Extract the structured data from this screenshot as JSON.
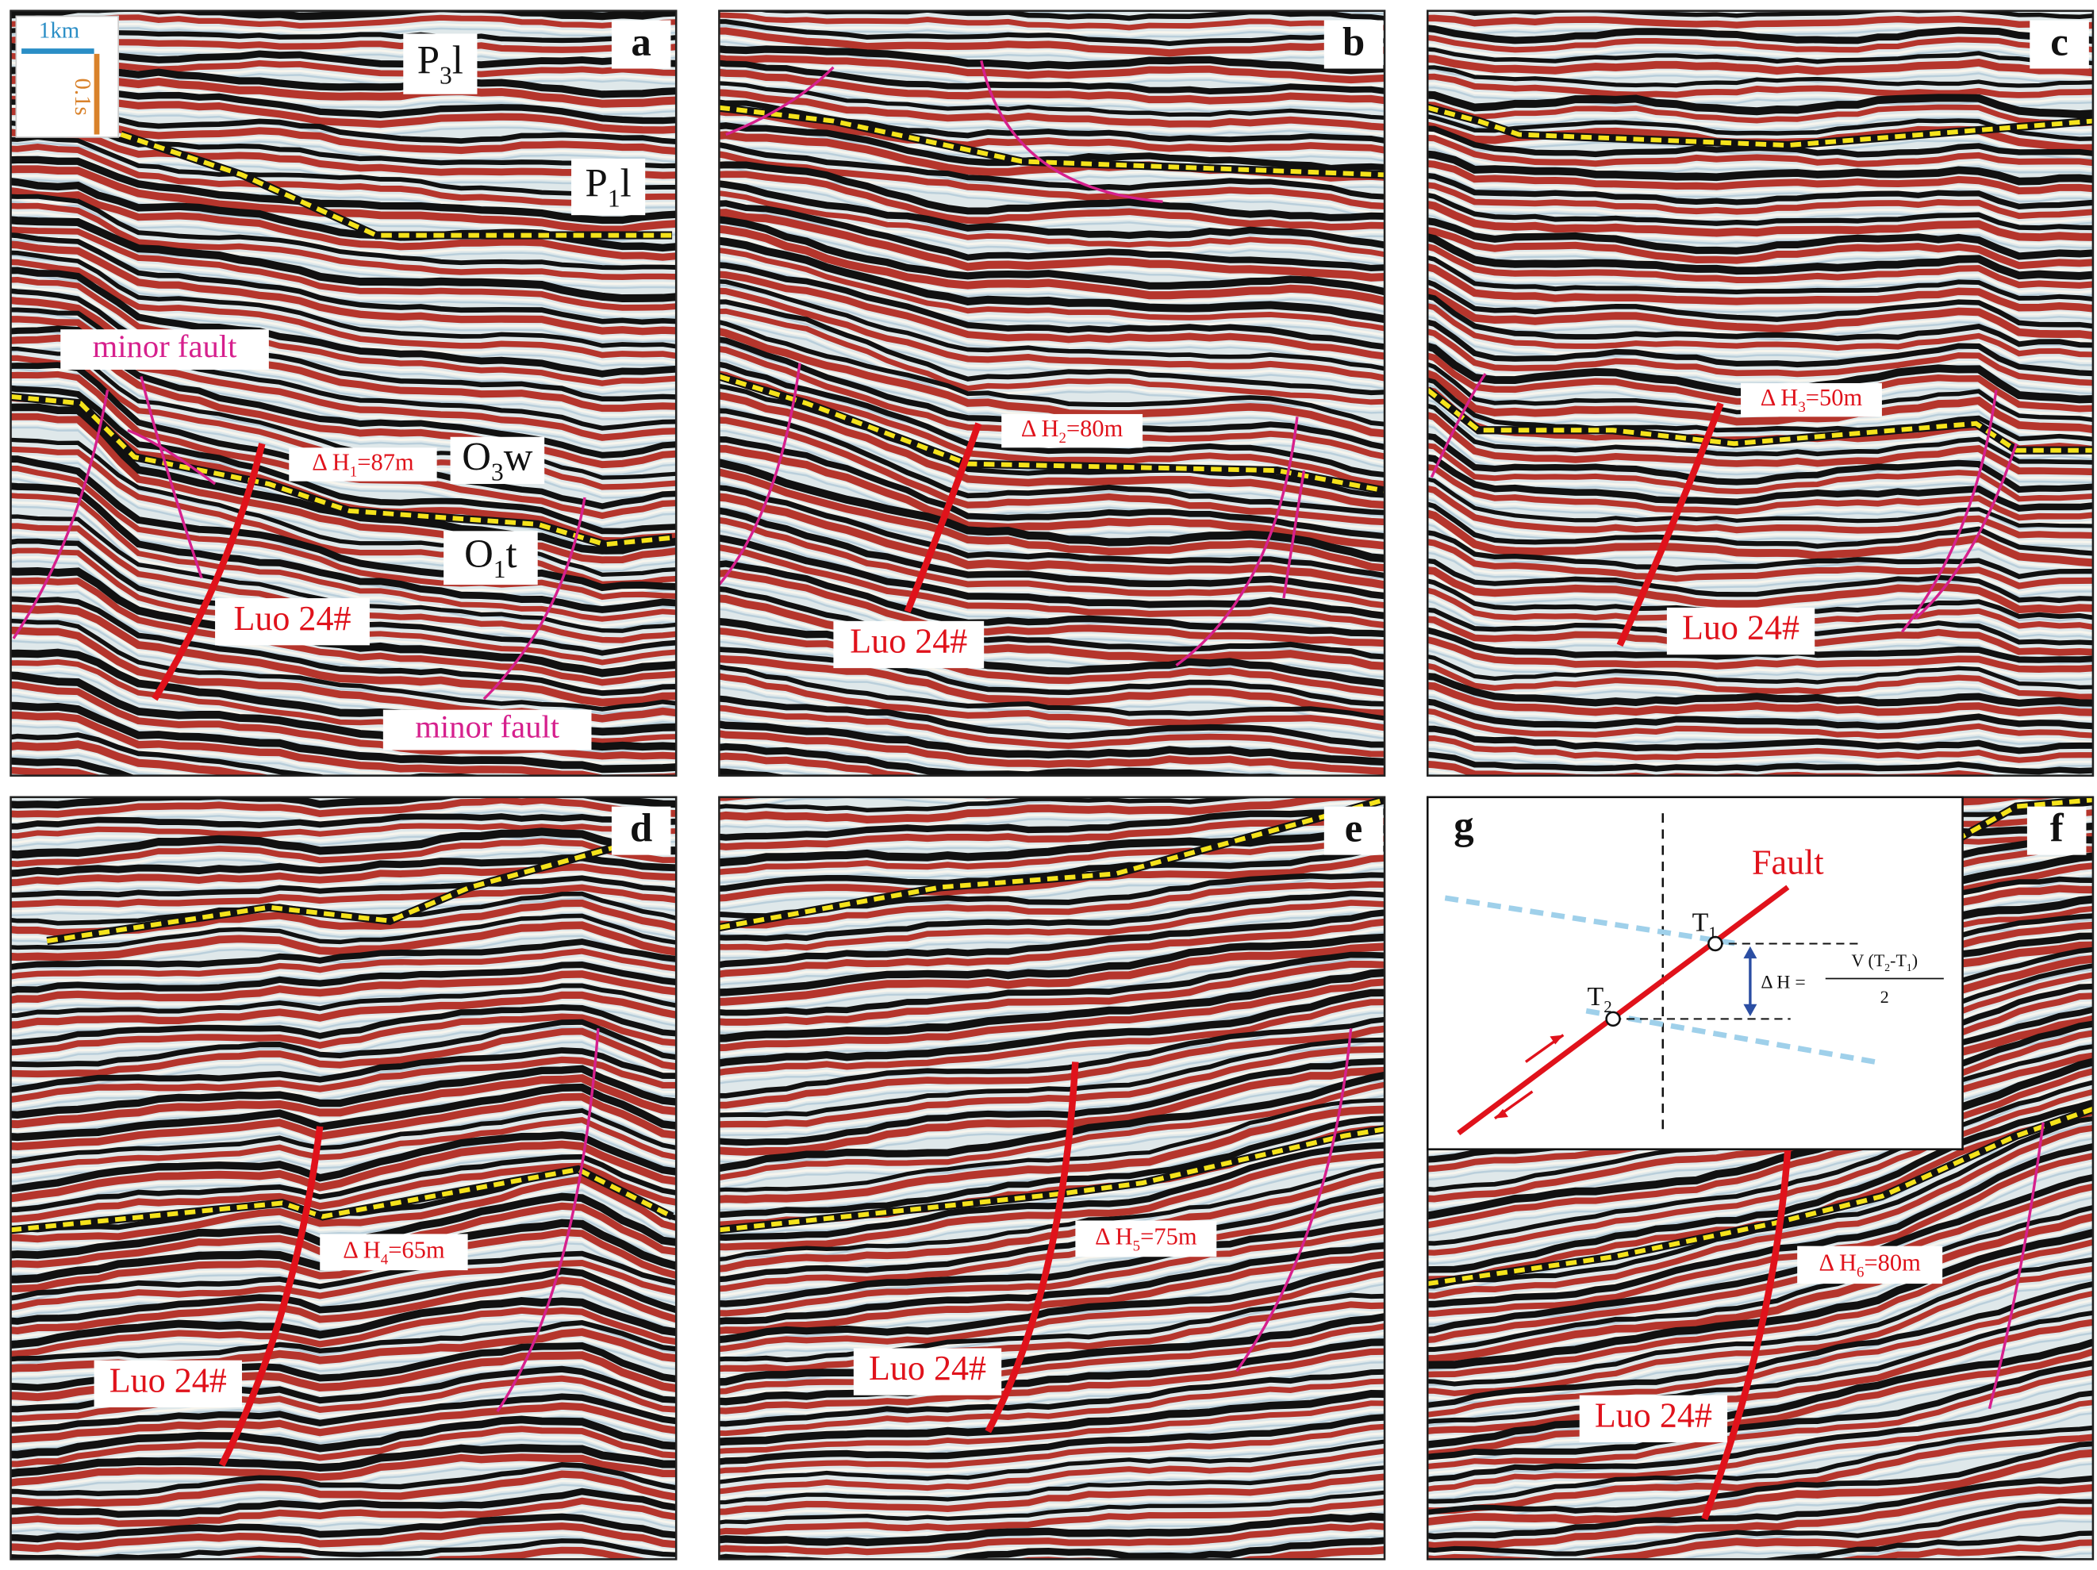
{
  "scale_bar": {
    "horizontal": "1km",
    "vertical": "0.1s"
  },
  "panels": [
    {
      "letter": "a",
      "formations": [
        {
          "base": "P",
          "sub": "3",
          "rest": "l"
        },
        {
          "base": "P",
          "sub": "1",
          "rest": "l"
        },
        {
          "base": "O",
          "sub": "3",
          "rest": "w"
        },
        {
          "base": "O",
          "sub": "1",
          "rest": "t"
        }
      ],
      "minor_fault_labels": [
        "minor fault",
        "minor fault"
      ],
      "throw": {
        "prefix": "Δ H",
        "sub": "1",
        "suffix": "=87m"
      },
      "fault_label": "Luo 24#"
    },
    {
      "letter": "b",
      "throw": {
        "prefix": "Δ H",
        "sub": "2",
        "suffix": "=80m"
      },
      "fault_label": "Luo 24#"
    },
    {
      "letter": "c",
      "throw": {
        "prefix": "Δ H",
        "sub": "3",
        "suffix": "=50m"
      },
      "fault_label": "Luo 24#"
    },
    {
      "letter": "d",
      "throw": {
        "prefix": "Δ H",
        "sub": "4",
        "suffix": "=65m"
      },
      "fault_label": "Luo 24#"
    },
    {
      "letter": "e",
      "throw": {
        "prefix": "Δ H",
        "sub": "5",
        "suffix": "=75m"
      },
      "fault_label": "Luo 24#"
    },
    {
      "letter": "f",
      "throw": {
        "prefix": "Δ H",
        "sub": "6",
        "suffix": "=80m"
      },
      "fault_label": "Luo 24#"
    }
  ],
  "schematic": {
    "letter": "g",
    "fault": "Fault",
    "t1": {
      "base": "T",
      "sub": "1"
    },
    "t2": {
      "base": "T",
      "sub": "2"
    },
    "formula": {
      "lhs": "Δ H =",
      "numerator": [
        "V (T",
        "2",
        "-T",
        "1",
        ")"
      ],
      "denominator": "2"
    }
  }
}
